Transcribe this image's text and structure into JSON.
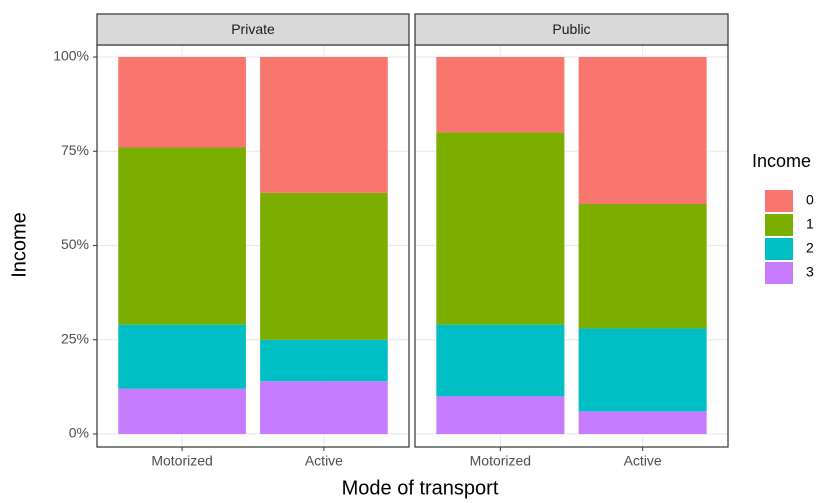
{
  "chart_data": {
    "type": "stacked_bar",
    "facets": [
      "Private",
      "Public"
    ],
    "categories": [
      "Motorized",
      "Active",
      "Motorized",
      "Active"
    ],
    "x_label": "Mode of transport",
    "y_label": "Income",
    "legend_title": "Income",
    "series": [
      {
        "name": "0",
        "color": "#F8766D",
        "values": [
          24,
          36,
          20,
          39
        ]
      },
      {
        "name": "1",
        "color": "#7CAE00",
        "values": [
          47,
          39,
          51,
          33
        ]
      },
      {
        "name": "2",
        "color": "#00BFC4",
        "values": [
          17,
          11,
          19,
          22
        ]
      },
      {
        "name": "3",
        "color": "#C77CFF",
        "values": [
          12,
          14,
          10,
          6
        ]
      }
    ],
    "ylim": [
      0,
      100
    ],
    "yticks": [
      {
        "value": 0,
        "label": "0%"
      },
      {
        "value": 25,
        "label": "25%"
      },
      {
        "value": 50,
        "label": "50%"
      },
      {
        "value": 75,
        "label": "75%"
      },
      {
        "value": 100,
        "label": "100%"
      }
    ],
    "grid": true
  }
}
